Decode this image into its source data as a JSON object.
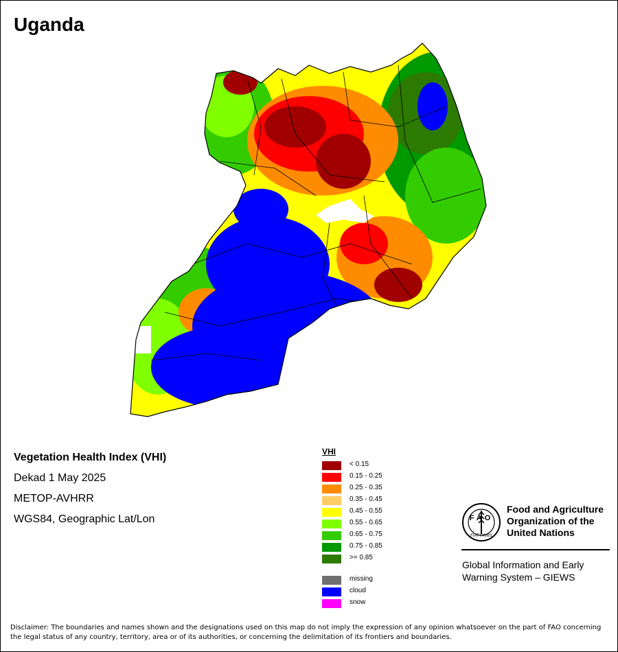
{
  "title": "Uganda",
  "info": {
    "index_name": "Vegetation Health Index (VHI)",
    "period": "Dekad 1 May 2025",
    "sensor": "METOP-AVHRR",
    "projection": "WGS84, Geographic Lat/Lon"
  },
  "legend": {
    "title": "VHI",
    "classes": [
      {
        "label": "< 0.15",
        "color": "#a00000"
      },
      {
        "label": "0.15 - 0.25",
        "color": "#ff0000"
      },
      {
        "label": "0.25 - 0.35",
        "color": "#ff8c00"
      },
      {
        "label": "0.35 - 0.45",
        "color": "#ffcc66"
      },
      {
        "label": "0.45 - 0.55",
        "color": "#ffff00"
      },
      {
        "label": "0.55 - 0.65",
        "color": "#80ff00"
      },
      {
        "label": "0.65 - 0.75",
        "color": "#33cc00"
      },
      {
        "label": "0.75 - 0.85",
        "color": "#009900"
      },
      {
        "label": ">= 0.85",
        "color": "#2d7a00"
      }
    ],
    "special": [
      {
        "label": "missing",
        "color": "#707070"
      },
      {
        "label": "cloud",
        "color": "#0000ff"
      },
      {
        "label": "snow",
        "color": "#ff00ff"
      }
    ]
  },
  "logo": {
    "org_name": "Food and Agriculture Organization of the United Nations",
    "program": "Global Information and Early Warning System – GIEWS",
    "emblem_letters": "FAO",
    "emblem_motto": "FIAT PANIS"
  },
  "disclaimer": "Disclaimer: The boundaries and names shown and the designations used on this map do not imply the expression of any opinion whatsoever on the part of FAO concerning the legal status of any country, territory, area or of its authorities, or concerning the delimitation of its frontiers and boundaries."
}
